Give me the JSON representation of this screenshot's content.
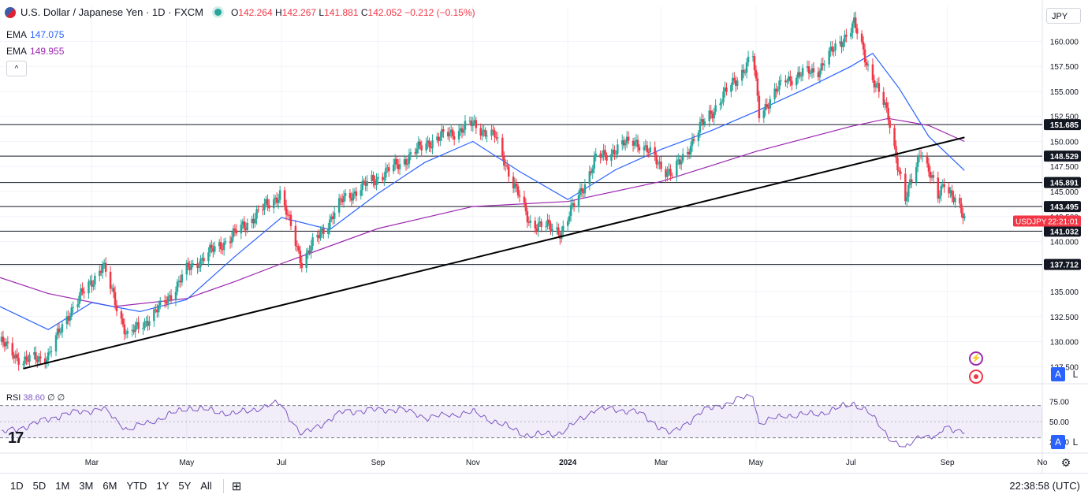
{
  "header": {
    "title": "U.S. Dollar / Japanese Yen · 1D · FXCM",
    "ohlc": {
      "o_label": "O",
      "o": "142.264",
      "h_label": "H",
      "h": "142.267",
      "l_label": "L",
      "l": "141.881",
      "c_label": "C",
      "c": "142.052",
      "change": "−0.212 (−0.15%)"
    },
    "ema_fast_label": "EMA",
    "ema_fast_value": "147.075",
    "ema_slow_label": "EMA",
    "ema_slow_value": "149.955",
    "collapse_glyph": "^"
  },
  "currency_button": "JPY",
  "scale_buttons": {
    "auto": "A",
    "log": "L"
  },
  "rsi": {
    "label": "RSI",
    "value": "38.60",
    "extra1": "∅",
    "extra2": "∅"
  },
  "symbol_tag": {
    "symbol": "USDJPY",
    "countdown": "22:21:01"
  },
  "bottom_bar": {
    "ranges": [
      "1D",
      "5D",
      "1M",
      "3M",
      "6M",
      "YTD",
      "1Y",
      "5Y",
      "All"
    ],
    "compare_icon": "calendar-range-icon",
    "clock": "22:38:58 (UTC)"
  },
  "logo_text": "17",
  "colors": {
    "up": "#26a69a",
    "down": "#f23645",
    "ema_fast": "#2962ff",
    "ema_slow": "#9c27b0",
    "rsi": "#7e57c2",
    "price_tag": "#131722"
  },
  "chart_data": [
    {
      "type": "line",
      "subtype": "candlestick",
      "symbol": "USDJPY",
      "ylim": [
        126.5,
        163.5
      ],
      "y_ticks": [
        127.5,
        130.0,
        132.5,
        135.0,
        137.5,
        140.0,
        142.5,
        145.0,
        147.5,
        150.0,
        152.5,
        155.0,
        157.5,
        160.0
      ],
      "y_tick_labels": [
        "127.500",
        "130.000",
        "132.500",
        "135.000",
        "137.500",
        "140.000",
        "142.500",
        "145.000",
        "147.500",
        "150.000",
        "152.500",
        "155.000",
        "157.500",
        "160.000"
      ],
      "x_labels": [
        "Mar",
        "May",
        "Jul",
        "Sep",
        "Nov",
        "2024",
        "Mar",
        "May",
        "Jul",
        "Sep",
        "No"
      ],
      "grid": true,
      "horizontal_levels": [
        {
          "value": 151.685,
          "label": "151.685"
        },
        {
          "value": 148.529,
          "label": "148.529"
        },
        {
          "value": 145.891,
          "label": "145.891"
        },
        {
          "value": 143.495,
          "label": "143.495"
        },
        {
          "value": 141.032,
          "label": "141.032"
        },
        {
          "value": 137.712,
          "label": "137.712"
        }
      ],
      "trendline": {
        "start": [
          "2023-01-16",
          127.3
        ],
        "end": [
          "2024-09-12",
          150.4
        ]
      },
      "price_points": [
        [
          "2023-01-01",
          130.0
        ],
        [
          "2023-01-16",
          128.0
        ],
        [
          "2023-02-01",
          128.6
        ],
        [
          "2023-02-14",
          132.8
        ],
        [
          "2023-03-08",
          137.6
        ],
        [
          "2023-03-24",
          130.5
        ],
        [
          "2023-04-15",
          133.5
        ],
        [
          "2023-05-02",
          137.3
        ],
        [
          "2023-05-30",
          140.5
        ],
        [
          "2023-06-30",
          144.8
        ],
        [
          "2023-07-14",
          138.0
        ],
        [
          "2023-08-10",
          144.3
        ],
        [
          "2023-09-15",
          147.8
        ],
        [
          "2023-10-03",
          149.9
        ],
        [
          "2023-11-01",
          151.7
        ],
        [
          "2023-11-15",
          150.5
        ],
        [
          "2023-12-07",
          142.0
        ],
        [
          "2023-12-28",
          141.0
        ],
        [
          "2024-01-19",
          148.2
        ],
        [
          "2024-02-13",
          150.2
        ],
        [
          "2024-03-08",
          146.6
        ],
        [
          "2024-03-27",
          151.6
        ],
        [
          "2024-04-29",
          158.5
        ],
        [
          "2024-05-03",
          152.8
        ],
        [
          "2024-05-20",
          156.2
        ],
        [
          "2024-06-10",
          157.2
        ],
        [
          "2024-07-03",
          161.7
        ],
        [
          "2024-07-11",
          158.0
        ],
        [
          "2024-07-25",
          152.5
        ],
        [
          "2024-08-05",
          144.0
        ],
        [
          "2024-08-15",
          149.3
        ],
        [
          "2024-08-26",
          144.3
        ],
        [
          "2024-08-30",
          146.2
        ],
        [
          "2024-09-12",
          142.1
        ]
      ],
      "ema_fast_points": [
        [
          "2023-01-01",
          133.5
        ],
        [
          "2023-02-01",
          131.2
        ],
        [
          "2023-03-01",
          133.9
        ],
        [
          "2023-04-01",
          133.0
        ],
        [
          "2023-05-01",
          134.2
        ],
        [
          "2023-06-01",
          138.5
        ],
        [
          "2023-07-01",
          142.4
        ],
        [
          "2023-08-01",
          141.2
        ],
        [
          "2023-09-01",
          144.8
        ],
        [
          "2023-10-01",
          147.9
        ],
        [
          "2023-11-01",
          150.0
        ],
        [
          "2023-12-01",
          147.0
        ],
        [
          "2024-01-01",
          144.2
        ],
        [
          "2024-02-01",
          147.2
        ],
        [
          "2024-03-01",
          149.2
        ],
        [
          "2024-04-01",
          151.0
        ],
        [
          "2024-05-01",
          153.0
        ],
        [
          "2024-06-01",
          155.2
        ],
        [
          "2024-07-01",
          157.5
        ],
        [
          "2024-07-15",
          158.8
        ],
        [
          "2024-08-01",
          155.3
        ],
        [
          "2024-08-20",
          150.5
        ],
        [
          "2024-09-12",
          147.1
        ]
      ],
      "ema_slow_points": [
        [
          "2023-01-01",
          136.4
        ],
        [
          "2023-02-01",
          134.8
        ],
        [
          "2023-03-15",
          133.5
        ],
        [
          "2023-05-01",
          134.3
        ],
        [
          "2023-06-01",
          136.0
        ],
        [
          "2023-07-01",
          137.8
        ],
        [
          "2023-09-01",
          141.3
        ],
        [
          "2023-11-01",
          143.5
        ],
        [
          "2024-01-01",
          144.0
        ],
        [
          "2024-03-01",
          146.0
        ],
        [
          "2024-05-01",
          149.0
        ],
        [
          "2024-07-01",
          151.5
        ],
        [
          "2024-07-25",
          152.3
        ],
        [
          "2024-08-20",
          151.6
        ],
        [
          "2024-09-12",
          150.0
        ]
      ],
      "last_price": 142.052
    },
    {
      "type": "line",
      "name": "RSI",
      "ylim": [
        14,
        92
      ],
      "y_ticks": [
        25,
        50,
        75
      ],
      "y_tick_labels": [
        "25.00",
        "50.00",
        "75.00"
      ],
      "band": [
        30,
        70
      ],
      "points": [
        [
          "2023-01-01",
          35
        ],
        [
          "2023-01-20",
          45
        ],
        [
          "2023-02-10",
          58
        ],
        [
          "2023-03-08",
          66
        ],
        [
          "2023-03-24",
          40
        ],
        [
          "2023-04-15",
          55
        ],
        [
          "2023-05-02",
          68
        ],
        [
          "2023-06-01",
          60
        ],
        [
          "2023-06-30",
          73
        ],
        [
          "2023-07-14",
          33
        ],
        [
          "2023-08-10",
          62
        ],
        [
          "2023-09-15",
          65
        ],
        [
          "2023-10-03",
          55
        ],
        [
          "2023-11-01",
          62
        ],
        [
          "2023-12-07",
          33
        ],
        [
          "2023-12-28",
          37
        ],
        [
          "2024-01-19",
          66
        ],
        [
          "2024-02-13",
          63
        ],
        [
          "2024-03-08",
          34
        ],
        [
          "2024-03-27",
          62
        ],
        [
          "2024-04-29",
          83
        ],
        [
          "2024-05-03",
          48
        ],
        [
          "2024-05-20",
          58
        ],
        [
          "2024-06-10",
          60
        ],
        [
          "2024-07-03",
          73
        ],
        [
          "2024-07-11",
          65
        ],
        [
          "2024-07-25",
          32
        ],
        [
          "2024-08-05",
          16
        ],
        [
          "2024-08-15",
          34
        ],
        [
          "2024-08-26",
          30
        ],
        [
          "2024-08-30",
          42
        ],
        [
          "2024-09-12",
          38.6
        ]
      ]
    }
  ]
}
